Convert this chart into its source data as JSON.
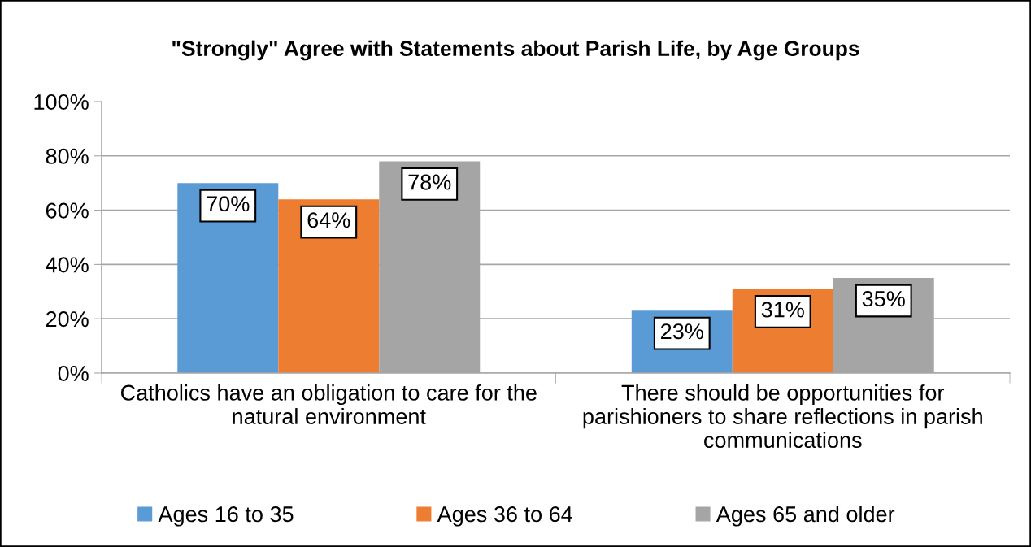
{
  "chart_data": {
    "type": "bar",
    "title": "\"Strongly\" Agree with Statements about Parish Life, by Age Groups",
    "categories": [
      "Catholics have an obligation to care for the natural environment",
      "There should be opportunities for parishioners to share reflections in parish communications"
    ],
    "series": [
      {
        "name": "Ages 16 to 35",
        "color": "#5b9bd5",
        "values": [
          70,
          23
        ],
        "value_labels": [
          "70%",
          "23%"
        ]
      },
      {
        "name": "Ages 36 to 64",
        "color": "#ed7d31",
        "values": [
          64,
          31
        ],
        "value_labels": [
          "64%",
          "31%"
        ]
      },
      {
        "name": "Ages 65 and older",
        "color": "#a5a5a5",
        "values": [
          78,
          35
        ],
        "value_labels": [
          "78%",
          "35%"
        ]
      }
    ],
    "ylim": [
      0,
      100
    ],
    "yticks": [
      {
        "value": 0,
        "label": "0%"
      },
      {
        "value": 20,
        "label": "20%"
      },
      {
        "value": 40,
        "label": "40%"
      },
      {
        "value": 60,
        "label": "60%"
      },
      {
        "value": 80,
        "label": "80%"
      },
      {
        "value": 100,
        "label": "100%"
      }
    ],
    "grid": "y",
    "legend": "bottom"
  }
}
